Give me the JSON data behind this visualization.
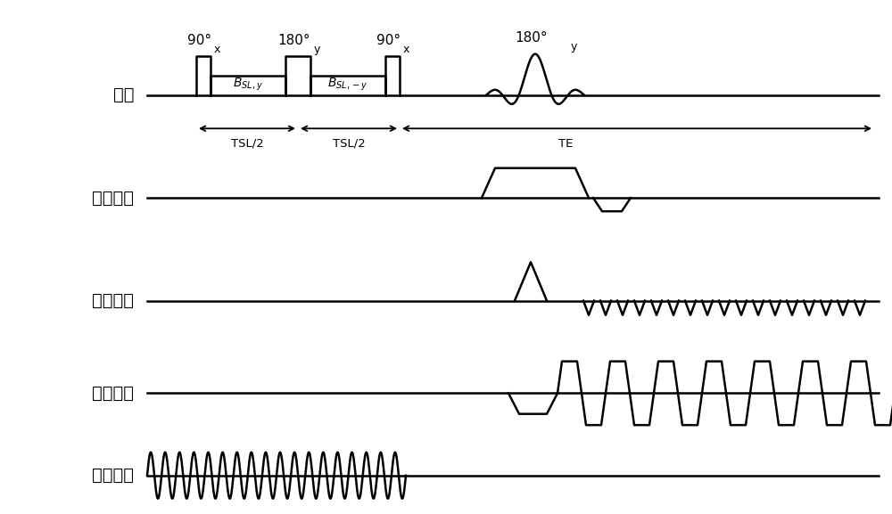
{
  "background_color": "#ffffff",
  "text_color": "#000000",
  "row_labels": [
    "射频",
    "选层梯度",
    "相位梯度",
    "读出梯度",
    "震荡磁场"
  ],
  "figsize": [
    10.0,
    5.77
  ],
  "dpi": 100,
  "label_fontsize": 14,
  "anno_fontsize": 11,
  "sub_fontsize": 9,
  "lw": 1.8
}
